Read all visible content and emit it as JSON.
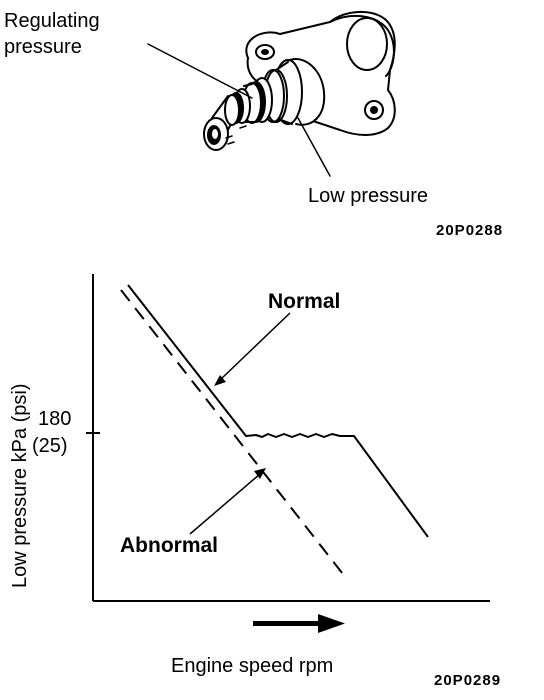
{
  "part_figure": {
    "callout_regulating_line1": "Regulating",
    "callout_regulating_line2": "pressure",
    "callout_low_pressure": "Low pressure",
    "figure_code": "20P0288"
  },
  "graph_figure": {
    "ylabel": "Low pressure kPa (psi)",
    "xlabel": "Engine speed rpm",
    "y_tick_kpa": "180",
    "y_tick_psi": "(25)",
    "curve_normal_label": "Normal",
    "curve_abnormal_label": "Abnormal",
    "figure_code": "20P0289"
  },
  "colors": {
    "ink": "#000000",
    "paper": "#ffffff"
  },
  "icons": {
    "direction": "right-arrow-icon"
  }
}
